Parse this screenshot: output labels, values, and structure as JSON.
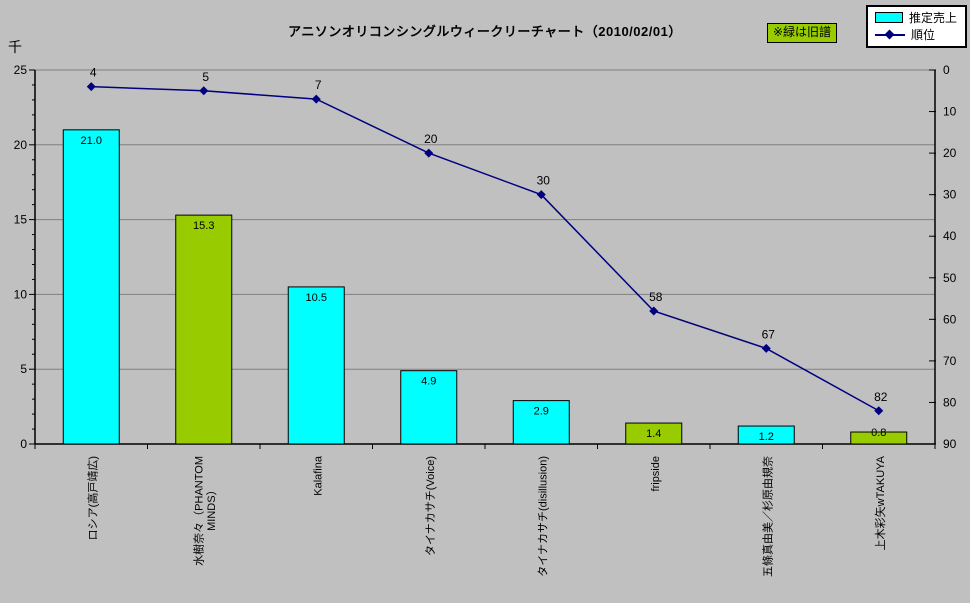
{
  "chart_data": {
    "type": "bar",
    "subtype": "bar+line combo, Excel-style chart",
    "title": "アニソンオリコンシングルウィークリーチャート（2010/02/01）",
    "note": "※緑は旧譜",
    "legend_position": "top-right",
    "grid": "horizontal major gridlines only",
    "categories": [
      "ロシア(高戸靖広)",
      "水樹奈々（PHANTOM\nMINDS）",
      "Kalafina",
      "タイナカサチ(Voice)",
      "タイナカサチ(disillusion)",
      "fripside",
      "五條真由美／杉原由規奈",
      "上木彩矢wTAKUYA"
    ],
    "series": [
      {
        "name": "推定売上",
        "type": "bar",
        "axis": "left",
        "unit": "千",
        "values": [
          21.0,
          15.3,
          10.5,
          4.9,
          2.9,
          1.4,
          1.2,
          0.8
        ],
        "value_labels": [
          "21.0",
          "15.3",
          "10.5",
          "4.9",
          "2.9",
          "1.4",
          "1.2",
          "0.8"
        ],
        "old_release_flags": [
          false,
          true,
          false,
          false,
          false,
          true,
          false,
          true
        ]
      },
      {
        "name": "順位",
        "type": "line",
        "axis": "right",
        "values": [
          4,
          5,
          7,
          20,
          30,
          58,
          67,
          82
        ],
        "point_labels": [
          "4",
          "5",
          "7",
          "20",
          "30",
          "58",
          "67",
          "82"
        ]
      }
    ],
    "left_axis": {
      "unit_label": "千",
      "min": 0,
      "max": 25,
      "major_tick": 5,
      "minor_tick": 1,
      "tick_labels": [
        "0",
        "5",
        "10",
        "15",
        "20",
        "25"
      ]
    },
    "right_axis": {
      "min": 0,
      "max": 90,
      "major_tick": 10,
      "inverted": true,
      "tick_labels": [
        "0",
        "10",
        "20",
        "30",
        "40",
        "50",
        "60",
        "70",
        "80",
        "90"
      ]
    },
    "colors": {
      "bar_new": "#00FFFF",
      "bar_old": "#99CC00",
      "line": "#000080",
      "marker": "#000080",
      "background": "#C0C0C0",
      "plot_background": "#C0C0C0",
      "gridline": "#808080",
      "axis": "#000000",
      "text": "#000000",
      "note_background": "#99CC00",
      "legend_background": "#FFFFFF"
    }
  }
}
